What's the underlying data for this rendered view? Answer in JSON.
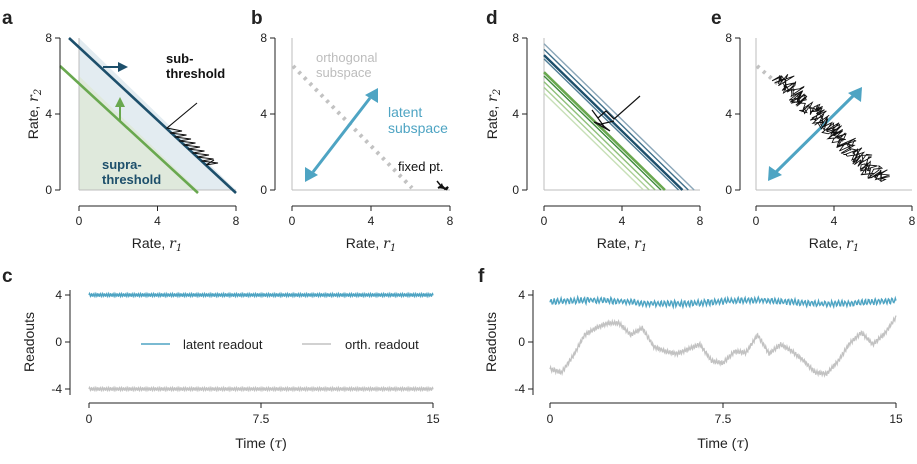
{
  "panel_letters": {
    "a": "a",
    "b": "b",
    "c": "c",
    "d": "d",
    "e": "e",
    "f": "f"
  },
  "colors": {
    "dark_blue": "#1d4f6b",
    "light_blue": "#4ea4c3",
    "green": "#69a84f",
    "light_green": "#b9d6a6",
    "gray": "#c2c2c2",
    "black": "#111111",
    "fill_sub": "#e3ecf1",
    "fill_supra": "#dfe9dc"
  },
  "labels": {
    "rate_r1": "Rate, ",
    "r1_sym": "r",
    "r1_sub": "1",
    "rate_r2": "Rate, ",
    "r2_sym": "r",
    "r2_sub": "2",
    "readouts": "Readouts",
    "time": "Time (",
    "tau": "τ",
    "time_close": ")",
    "sub_threshold_1": "sub-",
    "sub_threshold_2": "threshold",
    "supra_threshold_1": "supra-",
    "supra_threshold_2": "threshold",
    "orthogonal_subspace_1": "orthogonal",
    "orthogonal_subspace_2": "subspace",
    "latent_subspace_1": "latent",
    "latent_subspace_2": "subspace",
    "fixed_pt": "fixed pt.",
    "legend_latent": "latent readout",
    "legend_orth": "orth. readout"
  },
  "chart_data": [
    {
      "panel": "a",
      "type": "line",
      "xlabel": "Rate, r1",
      "ylabel": "Rate, r2",
      "xlim": [
        -1,
        8
      ],
      "ylim": [
        -0.6,
        8
      ],
      "xticks": [
        "0",
        "4",
        "8"
      ],
      "yticks": [
        "0",
        "4",
        "8"
      ],
      "series": [
        {
          "values": [
            [
              0,
              8
            ],
            [
              8,
              0
            ]
          ]
        },
        {
          "values": [
            [
              0,
              6
            ],
            [
              6,
              0
            ]
          ]
        }
      ],
      "annotations": [
        "sub-threshold",
        "supra-threshold"
      ]
    },
    {
      "panel": "b",
      "type": "line",
      "xlabel": "Rate, r1",
      "ylabel": "",
      "xlim": [
        -1,
        8
      ],
      "ylim": [
        -0.6,
        8
      ],
      "xticks": [
        "0",
        "4",
        "8"
      ],
      "yticks": [
        "0",
        "4",
        "8"
      ],
      "series": [
        {
          "values": [
            [
              0,
              6.5
            ],
            [
              6.5,
              0
            ]
          ]
        },
        {
          "values": [
            [
              0.8,
              0.6
            ],
            [
              5.3,
              5.3
            ]
          ]
        }
      ],
      "annotations": [
        "orthogonal subspace",
        "latent subspace",
        "fixed pt."
      ],
      "fixed_point": [
        7.8,
        0.1
      ]
    },
    {
      "panel": "c",
      "type": "line",
      "xlabel": "Time (τ)",
      "ylabel": "Readouts",
      "xlim": [
        -0.5,
        15.5
      ],
      "ylim": [
        -5,
        5
      ],
      "xticks": [
        "0",
        "7.5",
        "15"
      ],
      "yticks": [
        "4",
        "0",
        "-4"
      ],
      "series": [
        {
          "name": "latent readout",
          "mean": 4.0,
          "amplitude": 0.12
        },
        {
          "name": "orth. readout",
          "mean": -4.0,
          "amplitude": 0.12
        }
      ]
    },
    {
      "panel": "d",
      "type": "line",
      "xlabel": "Rate, r1",
      "ylabel": "Rate, r2",
      "xlim": [
        -0.2,
        8
      ],
      "ylim": [
        -0.3,
        8
      ],
      "xticks": [
        "0",
        "4",
        "8"
      ],
      "yticks": [
        "0",
        "4",
        "8"
      ],
      "line_intercepts": [
        7.7,
        7.4,
        7.1,
        6.9,
        6.2,
        6.0,
        5.7,
        5.4,
        5.1
      ]
    },
    {
      "panel": "e",
      "type": "scatter",
      "xlabel": "Rate, r1",
      "ylabel": "",
      "xlim": [
        -0.3,
        8
      ],
      "ylim": [
        -0.3,
        8
      ],
      "xticks": [
        "0",
        "4",
        "8"
      ],
      "yticks": [
        "0",
        "4",
        "8"
      ],
      "trajectory_from": [
        1.2,
        6.0
      ],
      "trajectory_to": [
        6.5,
        0.5
      ]
    },
    {
      "panel": "f",
      "type": "line",
      "xlabel": "Time (τ)",
      "ylabel": "Readouts",
      "xlim": [
        -0.5,
        15.5
      ],
      "ylim": [
        -5,
        5
      ],
      "xticks": [
        "0",
        "7.5",
        "15"
      ],
      "yticks": [
        "4",
        "0",
        "-4"
      ],
      "series": [
        {
          "name": "latent readout",
          "mean": 3.4
        },
        {
          "name": "orth. readout",
          "values": [
            [
              0,
              -2.3
            ],
            [
              0.5,
              -2.6
            ],
            [
              1.0,
              -1.2
            ],
            [
              1.5,
              0.6
            ],
            [
              2.0,
              1.2
            ],
            [
              2.5,
              1.6
            ],
            [
              3.0,
              1.6
            ],
            [
              3.5,
              0.6
            ],
            [
              4.0,
              1.2
            ],
            [
              4.5,
              -0.4
            ],
            [
              5.0,
              -0.8
            ],
            [
              5.5,
              -1.0
            ],
            [
              6.0,
              -0.6
            ],
            [
              6.5,
              -0.2
            ],
            [
              7.0,
              -1.6
            ],
            [
              7.5,
              -1.8
            ],
            [
              8.0,
              -0.8
            ],
            [
              8.5,
              -0.9
            ],
            [
              9.0,
              0.6
            ],
            [
              9.5,
              -1.0
            ],
            [
              10.0,
              -0.2
            ],
            [
              10.5,
              -0.8
            ],
            [
              11.0,
              -1.6
            ],
            [
              11.5,
              -2.6
            ],
            [
              12.0,
              -2.7
            ],
            [
              12.5,
              -1.6
            ],
            [
              13.0,
              -0.1
            ],
            [
              13.5,
              0.8
            ],
            [
              14.0,
              -0.2
            ],
            [
              14.5,
              0.7
            ],
            [
              15.0,
              2.1
            ]
          ]
        }
      ]
    }
  ]
}
